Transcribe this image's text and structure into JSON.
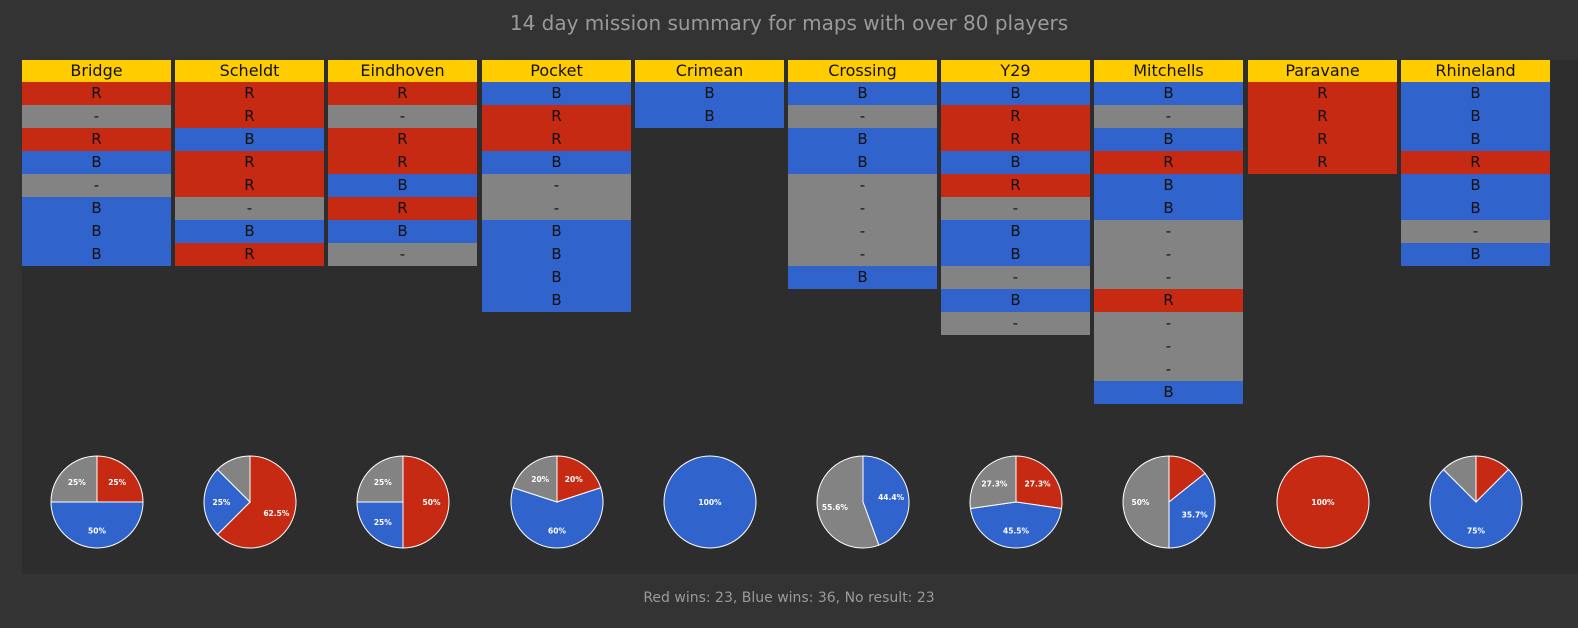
{
  "title": "14 day mission summary for maps with over 80 players",
  "footer": "Red wins: 23, Blue wins: 36, No result: 23",
  "colors": {
    "R": "#c72a13",
    "B": "#3064cc",
    "-": "#838383",
    "header": "#ffcc00"
  },
  "chart_data": {
    "type": "table",
    "maps": [
      {
        "name": "Bridge",
        "results": [
          "R",
          "-",
          "R",
          "B",
          "-",
          "B",
          "B",
          "B"
        ],
        "pie": [
          {
            "key": "R",
            "label": "25%",
            "value": 25
          },
          {
            "key": "B",
            "label": "50%",
            "value": 50
          },
          {
            "key": "-",
            "label": "25%",
            "value": 25
          }
        ]
      },
      {
        "name": "Scheldt",
        "results": [
          "R",
          "R",
          "B",
          "R",
          "R",
          "-",
          "B",
          "R"
        ],
        "pie": [
          {
            "key": "R",
            "label": "62.5%",
            "value": 62.5
          },
          {
            "key": "B",
            "label": "25%",
            "value": 25
          },
          {
            "key": "-",
            "label": "",
            "value": 12.5
          }
        ]
      },
      {
        "name": "Eindhoven",
        "results": [
          "R",
          "-",
          "R",
          "R",
          "B",
          "R",
          "B",
          "-"
        ],
        "pie": [
          {
            "key": "R",
            "label": "50%",
            "value": 50
          },
          {
            "key": "B",
            "label": "25%",
            "value": 25
          },
          {
            "key": "-",
            "label": "25%",
            "value": 25
          }
        ]
      },
      {
        "name": "Pocket",
        "results": [
          "B",
          "R",
          "R",
          "B",
          "-",
          "-",
          "B",
          "B",
          "B",
          "B"
        ],
        "pie": [
          {
            "key": "R",
            "label": "20%",
            "value": 20
          },
          {
            "key": "B",
            "label": "60%",
            "value": 60
          },
          {
            "key": "-",
            "label": "20%",
            "value": 20
          }
        ]
      },
      {
        "name": "Crimean",
        "results": [
          "B",
          "B"
        ],
        "pie": [
          {
            "key": "B",
            "label": "100%",
            "value": 100
          }
        ]
      },
      {
        "name": "Crossing",
        "results": [
          "B",
          "-",
          "B",
          "B",
          "-",
          "-",
          "-",
          "-",
          "B"
        ],
        "pie": [
          {
            "key": "B",
            "label": "44.4%",
            "value": 44.4
          },
          {
            "key": "-",
            "label": "55.6%",
            "value": 55.6
          }
        ]
      },
      {
        "name": "Y29",
        "results": [
          "B",
          "R",
          "R",
          "B",
          "R",
          "-",
          "B",
          "B",
          "-",
          "B",
          "-"
        ],
        "pie": [
          {
            "key": "R",
            "label": "27.3%",
            "value": 27.3
          },
          {
            "key": "B",
            "label": "45.5%",
            "value": 45.5
          },
          {
            "key": "-",
            "label": "27.3%",
            "value": 27.3
          }
        ]
      },
      {
        "name": "Mitchells",
        "results": [
          "B",
          "-",
          "B",
          "R",
          "B",
          "B",
          "-",
          "-",
          "-",
          "R",
          "-",
          "-",
          "-",
          "B"
        ],
        "pie": [
          {
            "key": "R",
            "label": "",
            "value": 14.3
          },
          {
            "key": "B",
            "label": "35.7%",
            "value": 35.7
          },
          {
            "key": "-",
            "label": "50%",
            "value": 50
          }
        ]
      },
      {
        "name": "Paravane",
        "results": [
          "R",
          "R",
          "R",
          "R"
        ],
        "pie": [
          {
            "key": "R",
            "label": "100%",
            "value": 100
          }
        ]
      },
      {
        "name": "Rhineland",
        "results": [
          "B",
          "B",
          "B",
          "R",
          "B",
          "B",
          "-",
          "B"
        ],
        "pie": [
          {
            "key": "R",
            "label": "",
            "value": 12.5
          },
          {
            "key": "B",
            "label": "75%",
            "value": 75
          },
          {
            "key": "-",
            "label": "",
            "value": 12.5
          }
        ]
      }
    ]
  }
}
